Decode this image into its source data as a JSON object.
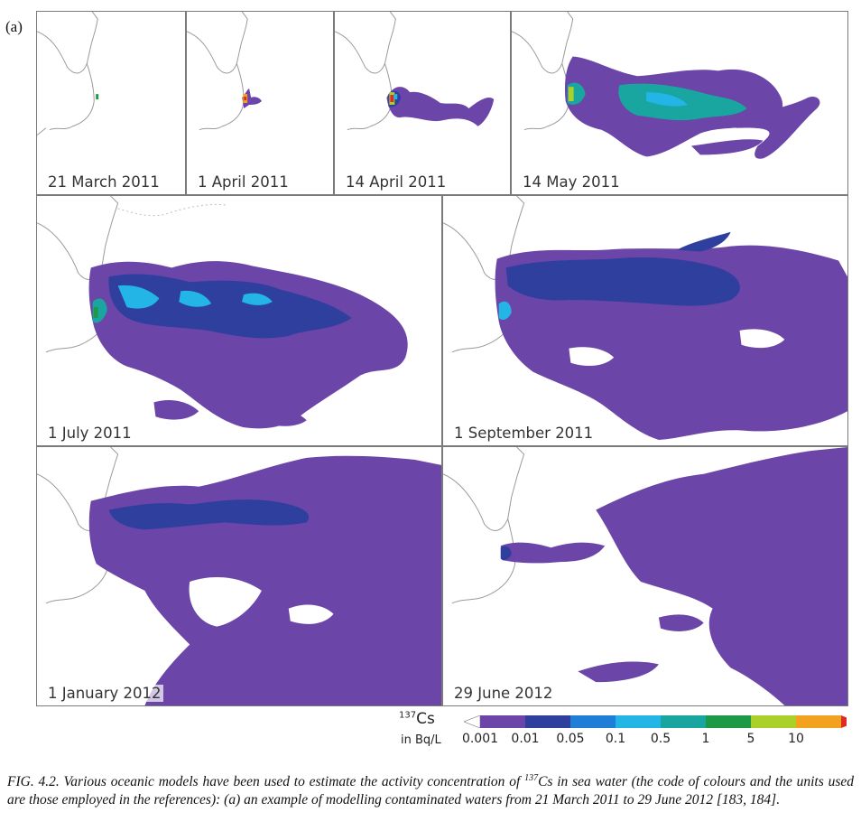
{
  "panel_label": "(a)",
  "panels": [
    {
      "date": "21 March 2011"
    },
    {
      "date": "1 April 2011"
    },
    {
      "date": "14 April 2011"
    },
    {
      "date": "14 May 2011"
    },
    {
      "date": "1 July 2011"
    },
    {
      "date": "1 September 2011"
    },
    {
      "date": "1 January 2012"
    },
    {
      "date": "29 June 2012"
    }
  ],
  "legend": {
    "isotope_mass": "137",
    "isotope_symbol": "Cs",
    "unit": "in Bq/L",
    "ticks": [
      "0.001",
      "0.01",
      "0.05",
      "0.1",
      "0.5",
      "1",
      "5",
      "10"
    ],
    "colors": [
      "#6b45a8",
      "#2f3f9e",
      "#1f7fd6",
      "#22b5e6",
      "#1aa6a0",
      "#1e9a47",
      "#a9d12a",
      "#f2a21e",
      "#e02a25"
    ]
  },
  "caption": {
    "before_sup": "FIG. 4.2. Various oceanic models have been used to estimate the activity concentration of ",
    "sup": "137",
    "after_sup": "Cs in sea water (the code of colours and the units used are those employed in the references): (a) an example of modelling contaminated waters from 21 March 2011 to 29 June 2012 [183, 184]."
  }
}
